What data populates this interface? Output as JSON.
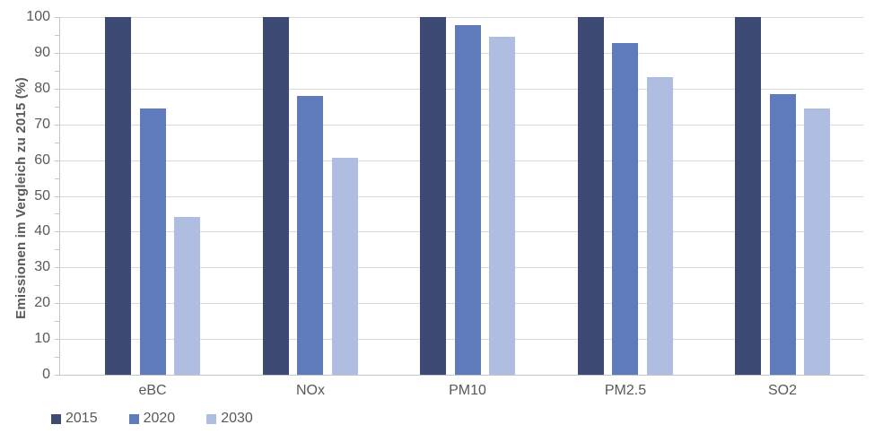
{
  "chart_data": {
    "type": "bar",
    "title": "",
    "xlabel": "",
    "ylabel": "Emissionen im Vergleich zu 2015 (%)",
    "categories": [
      "eBC",
      "NOx",
      "PM10",
      "PM2.5",
      "SO2"
    ],
    "series": [
      {
        "name": "2015",
        "color": "#3C4A74",
        "values": [
          100,
          100,
          100,
          100,
          100
        ]
      },
      {
        "name": "2020",
        "color": "#5F7BBC",
        "values": [
          74.5,
          78,
          97.8,
          92.8,
          78.5
        ]
      },
      {
        "name": "2030",
        "color": "#AFBEE0",
        "values": [
          44.2,
          60.6,
          94.4,
          83.3,
          74.5
        ]
      }
    ],
    "ylim": [
      0,
      100
    ],
    "ytick_step": 10,
    "yminor_tick_step": 5,
    "ytick_labels": [
      "0",
      "10",
      "20",
      "30",
      "40",
      "50",
      "60",
      "70",
      "80",
      "90",
      "100"
    ],
    "grid": true,
    "legend_position": "bottom-left",
    "colors": {
      "text": "#595959",
      "gridline": "#D9D9D9",
      "axis": "#C6C6C6",
      "background": "#FFFFFF"
    }
  }
}
